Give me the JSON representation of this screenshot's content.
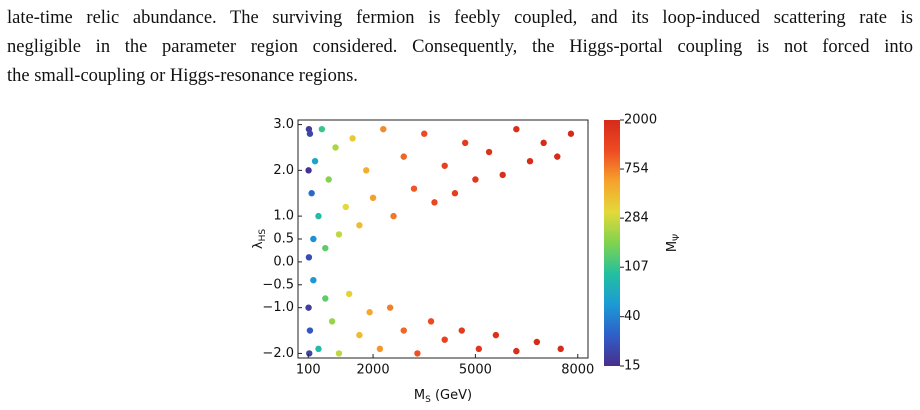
{
  "text": {
    "lines": [
      "late-time relic abundance. The surviving fermion is feebly coupled, and its loop-induced scattering rate is",
      "negligible in the parameter region considered. Consequently, the Higgs-portal coupling is not forced into",
      "the small-coupling or Higgs-resonance regions."
    ]
  },
  "chart_data": {
    "type": "scatter",
    "xlabel": {
      "base": "M",
      "sub": "S",
      "rest": " (GeV)"
    },
    "ylabel": {
      "base": "λ",
      "sub": "HS"
    },
    "colorbar_label": {
      "base": "M",
      "sub": "Ψ"
    },
    "x": [
      110,
      110,
      120,
      130,
      120,
      150,
      200,
      250,
      300,
      400,
      500,
      600,
      700,
      900,
      1000,
      1200,
      1400,
      1600,
      1800,
      2000,
      2300,
      2600,
      2900,
      3200,
      3500,
      3800,
      4100,
      4400,
      4700,
      5000,
      5400,
      5800,
      6200,
      6600,
      7000,
      7400,
      7800,
      150,
      250,
      400,
      600,
      800,
      1000,
      1300,
      1600,
      1900,
      2200,
      2500,
      2900,
      3300,
      3700,
      4100,
      4600,
      5100,
      5600,
      6200,
      6800,
      7500
    ],
    "y": [
      -1.0,
      2.0,
      0.1,
      -2.0,
      2.9,
      2.8,
      1.5,
      0.5,
      2.2,
      1.0,
      2.9,
      0.3,
      1.8,
      2.5,
      0.6,
      1.2,
      2.7,
      0.8,
      2.0,
      1.4,
      2.9,
      1.0,
      2.3,
      1.6,
      2.8,
      1.3,
      2.1,
      1.5,
      2.6,
      1.8,
      2.4,
      1.9,
      2.9,
      2.2,
      2.6,
      2.3,
      2.8,
      -1.5,
      -0.4,
      -1.9,
      -0.8,
      -1.3,
      -2.0,
      -0.7,
      -1.6,
      -1.1,
      -1.9,
      -1.0,
      -1.5,
      -2.0,
      -1.3,
      -1.7,
      -1.5,
      -1.9,
      -1.6,
      -1.95,
      -1.75,
      -1.9
    ],
    "c": [
      18,
      16,
      22,
      20,
      18,
      20,
      30,
      45,
      60,
      90,
      110,
      140,
      180,
      230,
      260,
      320,
      380,
      450,
      520,
      600,
      700,
      800,
      900,
      1000,
      1100,
      1200,
      1300,
      1400,
      1500,
      1600,
      1700,
      1800,
      1850,
      1900,
      1950,
      1980,
      2000,
      25,
      50,
      85,
      140,
      200,
      260,
      350,
      450,
      550,
      650,
      750,
      900,
      1050,
      1150,
      1300,
      1450,
      1600,
      1750,
      1850,
      1950,
      2000
    ],
    "xlim": [
      -200,
      8300
    ],
    "ylim": [
      -2.1,
      3.1
    ],
    "xticks": [
      100,
      2000,
      5000,
      8000
    ],
    "yticks": [
      {
        "value": 3,
        "label": "3.0"
      },
      {
        "value": 2,
        "label": "2.0"
      },
      {
        "value": 1,
        "label": "1.0"
      },
      {
        "value": 0.5,
        "label": "0.5"
      },
      {
        "value": 0,
        "label": "0.0"
      },
      {
        "value": -0.5,
        "label": "−0.5"
      },
      {
        "value": -1,
        "label": "−1.0"
      },
      {
        "value": -2,
        "label": "−2.0"
      }
    ],
    "clim": [
      15,
      2000
    ],
    "cticks": [
      15,
      40,
      107,
      284,
      754,
      2000
    ],
    "colorbar_scale": "log",
    "colormap": [
      "#4a2d8c",
      "#2f5fc8",
      "#1b9ad6",
      "#23c0a0",
      "#7fd34e",
      "#e3d93a",
      "#f6a32c",
      "#ee4b22",
      "#d62a1a"
    ]
  }
}
